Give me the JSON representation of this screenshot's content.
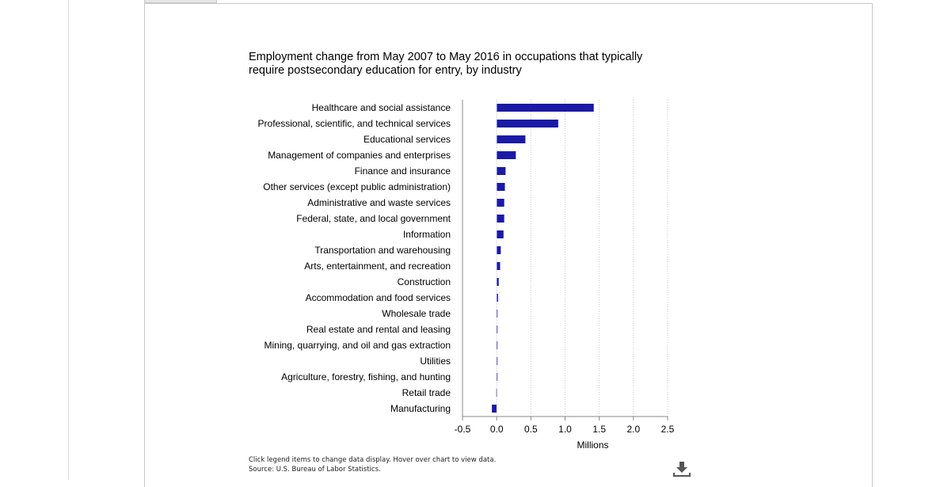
{
  "chart_data": {
    "type": "bar",
    "orientation": "horizontal",
    "title": "Employment change from May 2007 to May 2016 in occupations that typically require postsecondary education for entry, by industry",
    "xlabel": "Millions",
    "ylabel": "",
    "xlim": [
      -0.5,
      2.5
    ],
    "xticks": [
      "-0.5",
      "0.0",
      "0.5",
      "1.0",
      "1.5",
      "2.0",
      "2.5"
    ],
    "grid": "vertical dotted",
    "bar_color": "#1a1aa6",
    "categories": [
      "Healthcare and social assistance",
      "Professional, scientific, and technical services",
      "Educational services",
      "Management of companies and enterprises",
      "Finance and insurance",
      "Other services (except public administration)",
      "Administrative and waste services",
      "Federal, state, and local government",
      "Information",
      "Transportation and warehousing",
      "Arts, entertainment, and recreation",
      "Construction",
      "Accommodation and food services",
      "Wholesale trade",
      "Real estate and rental and leasing",
      "Mining, quarrying, and oil and gas extraction",
      "Utilities",
      "Agriculture, forestry, fishing, and hunting",
      "Retail trade",
      "Manufacturing"
    ],
    "values": [
      1.42,
      0.9,
      0.42,
      0.28,
      0.13,
      0.12,
      0.11,
      0.11,
      0.1,
      0.06,
      0.05,
      0.03,
      0.02,
      0.01,
      0.01,
      0.01,
      0.005,
      0.005,
      -0.005,
      -0.07
    ]
  },
  "footnote": {
    "line1": "Click legend items to change data display. Hover over chart to view data.",
    "line2": "Source: U.S. Bureau of Labor Statistics."
  },
  "icons": {
    "download": "download-icon"
  }
}
